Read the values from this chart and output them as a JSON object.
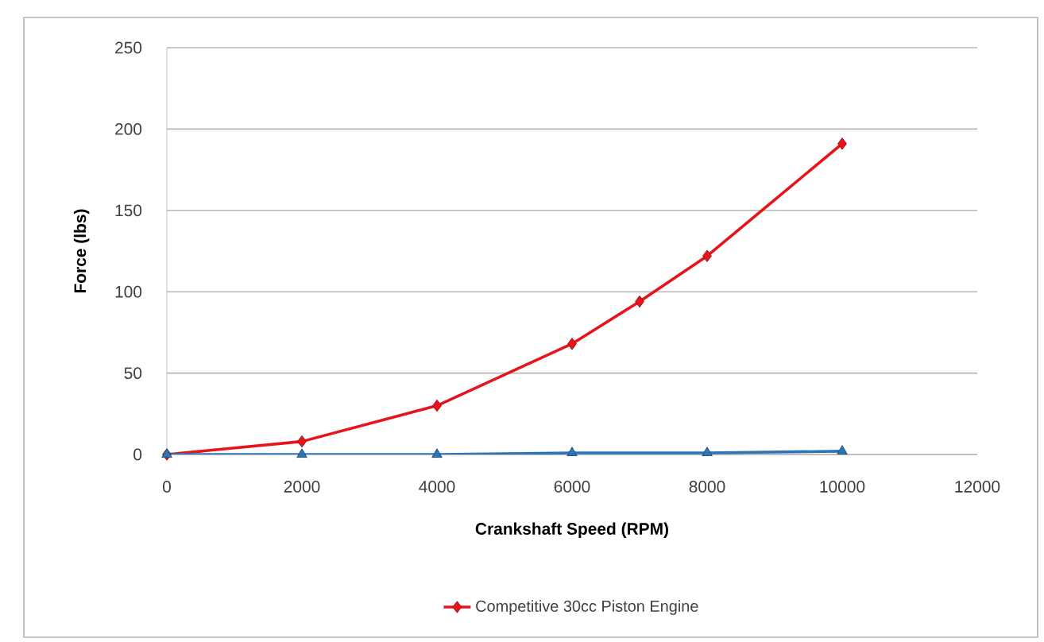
{
  "chart_data": {
    "type": "line",
    "xlabel": "Crankshaft Speed (RPM)",
    "ylabel": "Force (lbs)",
    "xlim": [
      0,
      12000
    ],
    "ylim": [
      0,
      250
    ],
    "xticks": [
      0,
      2000,
      4000,
      6000,
      8000,
      10000,
      12000
    ],
    "yticks": [
      0,
      50,
      100,
      150,
      200,
      250
    ],
    "grid": "y",
    "legend": "bottom",
    "line_style": "solid",
    "series": [
      {
        "name": "Competitive 30cc Piston Engine",
        "color": "#e8141b",
        "marker": "diamond",
        "x": [
          0,
          2000,
          4000,
          6000,
          7000,
          8000,
          10000
        ],
        "values": [
          0,
          8,
          30,
          68,
          94,
          122,
          191
        ]
      },
      {
        "color": "#2e75b6",
        "marker": "triangle",
        "x": [
          0,
          2000,
          4000,
          6000,
          8000,
          10000
        ],
        "values": [
          0,
          0,
          0,
          1,
          1,
          2
        ]
      }
    ]
  }
}
